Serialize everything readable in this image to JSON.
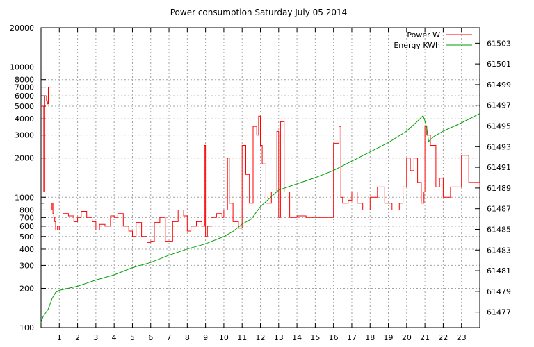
{
  "chart_data": {
    "type": "line",
    "title": "Power consumption Saturday July 05 2014",
    "xlabel": "",
    "ylabel": "",
    "x_ticks": [
      "1",
      "2",
      "3",
      "4",
      "5",
      "6",
      "7",
      "8",
      "9",
      "10",
      "11",
      "12",
      "13",
      "14",
      "15",
      "16",
      "17",
      "18",
      "19",
      "20",
      "21",
      "22",
      "23"
    ],
    "xlim": [
      0,
      24
    ],
    "y_left": {
      "scale": "log",
      "ylim": [
        100,
        20000
      ],
      "ticks": [
        "100",
        "200",
        "300",
        "400",
        "500",
        "600",
        "700",
        "800",
        "1000",
        "2000",
        "3000",
        "4000",
        "5000",
        "6000",
        "7000",
        "8000",
        "10000",
        "20000"
      ]
    },
    "y_right": {
      "scale": "linear",
      "ylim": [
        61475.5,
        61504.5
      ],
      "ticks": [
        "61477",
        "61479",
        "61481",
        "61483",
        "61485",
        "61487",
        "61489",
        "61491",
        "61493",
        "61495",
        "61497",
        "61499",
        "61501",
        "61503"
      ]
    },
    "grid": true,
    "legend_position": "top-right",
    "colors": {
      "power": "#ff0000",
      "energy": "#00a000",
      "grid": "#a0a0a0"
    },
    "series": [
      {
        "name": "Power W",
        "axis": "left",
        "x": [
          0.0,
          0.15,
          0.2,
          0.3,
          0.35,
          0.4,
          0.55,
          0.6,
          0.65,
          0.7,
          0.75,
          0.8,
          0.85,
          0.9,
          1.0,
          1.2,
          1.5,
          1.8,
          2.0,
          2.2,
          2.5,
          2.8,
          3.0,
          3.2,
          3.5,
          3.8,
          4.0,
          4.2,
          4.5,
          4.8,
          5.0,
          5.2,
          5.5,
          5.8,
          6.0,
          6.2,
          6.5,
          6.8,
          7.0,
          7.2,
          7.5,
          7.8,
          8.0,
          8.2,
          8.5,
          8.8,
          8.95,
          9.0,
          9.1,
          9.3,
          9.6,
          9.9,
          10.0,
          10.2,
          10.3,
          10.5,
          10.8,
          11.0,
          11.2,
          11.4,
          11.6,
          11.8,
          11.9,
          12.0,
          12.1,
          12.3,
          12.6,
          12.9,
          13.0,
          13.1,
          13.3,
          13.6,
          14.0,
          14.5,
          15.0,
          15.5,
          16.0,
          16.3,
          16.4,
          16.5,
          16.8,
          17.0,
          17.3,
          17.6,
          18.0,
          18.4,
          18.8,
          19.2,
          19.6,
          19.8,
          20.0,
          20.2,
          20.4,
          20.6,
          20.8,
          20.95,
          21.0,
          21.1,
          21.3,
          21.6,
          21.8,
          22.0,
          22.4,
          22.8,
          23.0,
          23.4,
          23.8,
          24.0
        ],
        "values": [
          5000,
          1100,
          6000,
          5500,
          5200,
          7000,
          800,
          900,
          750,
          700,
          650,
          560,
          560,
          600,
          560,
          750,
          720,
          650,
          700,
          780,
          700,
          650,
          560,
          620,
          600,
          720,
          700,
          750,
          600,
          550,
          500,
          640,
          500,
          450,
          460,
          640,
          700,
          460,
          460,
          650,
          800,
          720,
          550,
          600,
          650,
          600,
          2500,
          500,
          600,
          700,
          750,
          700,
          800,
          2000,
          900,
          650,
          580,
          2500,
          1500,
          900,
          3500,
          3000,
          4200,
          2500,
          1800,
          900,
          1100,
          3200,
          700,
          3800,
          1100,
          700,
          720,
          700,
          700,
          700,
          2600,
          3500,
          1000,
          900,
          950,
          1100,
          900,
          800,
          1000,
          1200,
          900,
          800,
          900,
          1200,
          2000,
          1600,
          2000,
          1300,
          900,
          1100,
          3500,
          3000,
          2500,
          1200,
          1400,
          1000,
          1200,
          1200,
          2100,
          1300,
          1300,
          1200
        ]
      },
      {
        "name": "Energy KWh",
        "axis": "right",
        "x": [
          0.0,
          0.1,
          0.2,
          0.4,
          0.6,
          0.8,
          1.0,
          2.0,
          3.0,
          4.0,
          5.0,
          6.0,
          7.0,
          8.0,
          9.0,
          10.0,
          10.5,
          11.0,
          11.5,
          12.0,
          12.5,
          13.0,
          14.0,
          15.0,
          16.0,
          17.0,
          18.0,
          19.0,
          20.0,
          20.5,
          20.9,
          21.0,
          21.1,
          21.2,
          21.5,
          22.0,
          23.0,
          24.0
        ],
        "values": [
          61476.0,
          61476.5,
          61476.8,
          61477.3,
          61478.3,
          61478.9,
          61479.1,
          61479.5,
          61480.1,
          61480.6,
          61481.3,
          61481.8,
          61482.5,
          61483.1,
          61483.6,
          61484.3,
          61484.8,
          61485.5,
          61486.0,
          61487.2,
          61488.0,
          61488.8,
          61489.4,
          61490.0,
          61490.7,
          61491.6,
          61492.5,
          61493.4,
          61494.5,
          61495.3,
          61496.0,
          61495.5,
          61494.8,
          61493.5,
          61494.0,
          61494.5,
          61495.3,
          61496.2
        ]
      }
    ]
  }
}
